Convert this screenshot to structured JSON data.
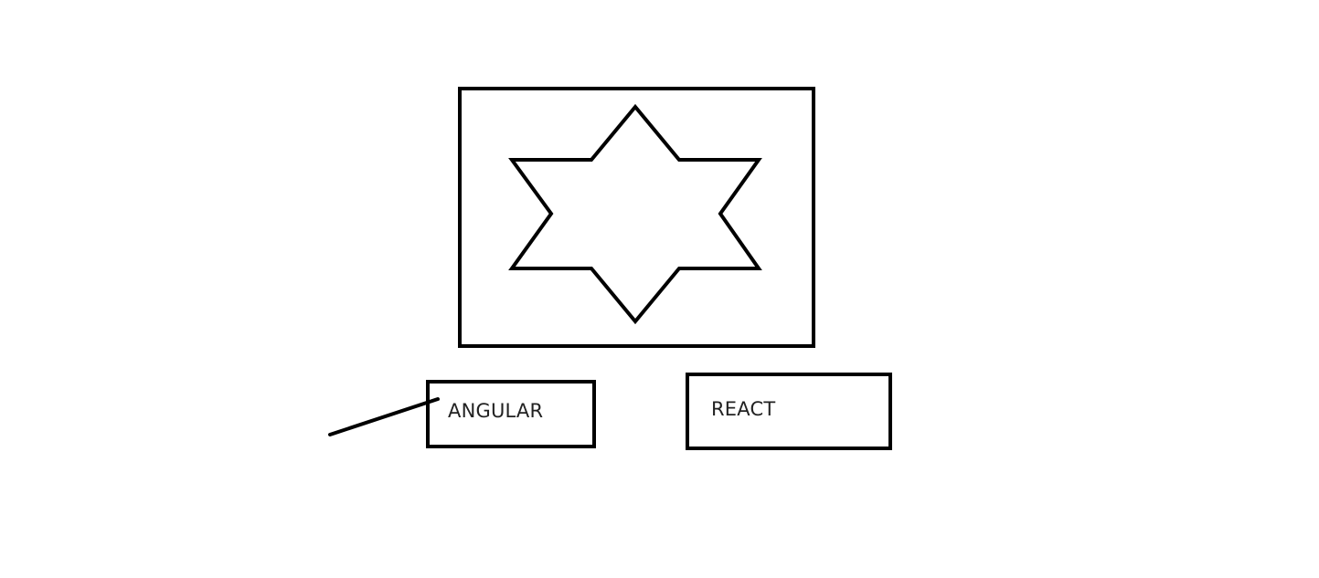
{
  "diagram": {
    "nodes": [
      {
        "id": "image-frame",
        "shape": "rectangle",
        "content": "star-icon"
      },
      {
        "id": "angular",
        "label": "ANGULAR"
      },
      {
        "id": "react",
        "label": "REACT"
      }
    ],
    "connectors": [
      {
        "to": "angular",
        "style": "line"
      }
    ],
    "stroke_color": "#000000",
    "text_color": "#222222",
    "background": "#ffffff"
  }
}
